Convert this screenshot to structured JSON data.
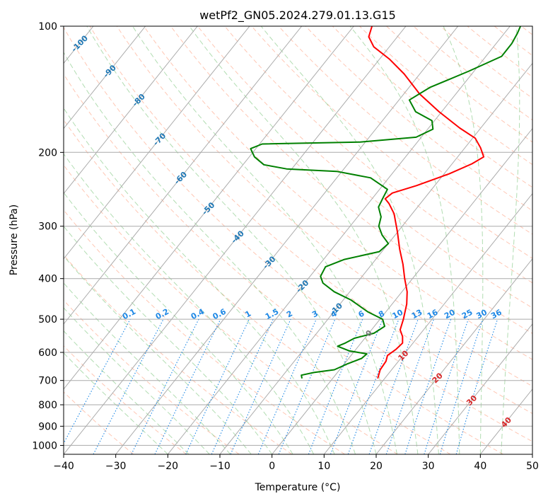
{
  "chart_data": {
    "type": "line",
    "subtype": "skew-t log-p diagram",
    "title": "wetPf2_GN05.2024.279.01.13.G15",
    "xlabel": "Temperature (°C)",
    "ylabel": "Pressure (hPa)",
    "xlim": [
      -40,
      50
    ],
    "ylim_hpa": [
      1050,
      100
    ],
    "y_scale": "log",
    "grid": true,
    "legend": "none",
    "x_ticks": [
      "−40",
      "−30",
      "−20",
      "−10",
      "0",
      "10",
      "20",
      "30",
      "40",
      "50"
    ],
    "y_ticks": [
      "100",
      "200",
      "300",
      "400",
      "500",
      "600",
      "700",
      "800",
      "900",
      "1000"
    ],
    "x_tick_values": [
      -40,
      -30,
      -20,
      -10,
      0,
      10,
      20,
      30,
      40,
      50
    ],
    "y_tick_values": [
      100,
      200,
      300,
      400,
      500,
      600,
      700,
      800,
      900,
      1000
    ],
    "isotherm_spacing_c": 10,
    "colors": {
      "temperature": "#ff0000",
      "dewpoint": "#008000",
      "isotherm": "#aaaaaa",
      "isobar": "#aaaaaa",
      "dry_adiabat": "#ff9977",
      "moist_adiabat": "#66bb66",
      "mixing_ratio": "#1e88e5",
      "freezing_level_curve": "#c8a878",
      "label_blue": "#1f77b4",
      "label_red": "#d62728",
      "label_gray": "#777777"
    },
    "series": [
      {
        "name": "temperature",
        "points": [
          {
            "p": 690,
            "t": 8.6
          },
          {
            "p": 660,
            "t": 7.8
          },
          {
            "p": 630,
            "t": 7.6
          },
          {
            "p": 610,
            "t": 7.0
          },
          {
            "p": 590,
            "t": 7.7
          },
          {
            "p": 570,
            "t": 8.0
          },
          {
            "p": 550,
            "t": 7.0
          },
          {
            "p": 530,
            "t": 5.5
          },
          {
            "p": 500,
            "t": 4.5
          },
          {
            "p": 460,
            "t": 2.8
          },
          {
            "p": 430,
            "t": 1.0
          },
          {
            "p": 400,
            "t": -1.5
          },
          {
            "p": 370,
            "t": -4.0
          },
          {
            "p": 340,
            "t": -7.0
          },
          {
            "p": 310,
            "t": -10.0
          },
          {
            "p": 280,
            "t": -13.5
          },
          {
            "p": 265,
            "t": -16.0
          },
          {
            "p": 258,
            "t": -17.5
          },
          {
            "p": 250,
            "t": -17.0
          },
          {
            "p": 240,
            "t": -13.5
          },
          {
            "p": 225,
            "t": -9.0
          },
          {
            "p": 213,
            "t": -6.2
          },
          {
            "p": 205,
            "t": -5.0
          },
          {
            "p": 195,
            "t": -7.0
          },
          {
            "p": 185,
            "t": -9.5
          },
          {
            "p": 175,
            "t": -14.0
          },
          {
            "p": 160,
            "t": -20.5
          },
          {
            "p": 145,
            "t": -27.0
          },
          {
            "p": 130,
            "t": -33.0
          },
          {
            "p": 120,
            "t": -38.0
          },
          {
            "p": 112,
            "t": -43.0
          },
          {
            "p": 106,
            "t": -45.5
          },
          {
            "p": 100,
            "t": -46.5
          }
        ]
      },
      {
        "name": "dewpoint",
        "points": [
          {
            "p": 690,
            "t": -6.0
          },
          {
            "p": 680,
            "t": -6.5
          },
          {
            "p": 670,
            "t": -4.5
          },
          {
            "p": 660,
            "t": -1.0
          },
          {
            "p": 640,
            "t": 0.5
          },
          {
            "p": 620,
            "t": 2.5
          },
          {
            "p": 605,
            "t": 2.8
          },
          {
            "p": 595,
            "t": -1.0
          },
          {
            "p": 580,
            "t": -4.0
          },
          {
            "p": 570,
            "t": -3.0
          },
          {
            "p": 555,
            "t": -2.0
          },
          {
            "p": 540,
            "t": 1.0
          },
          {
            "p": 520,
            "t": 2.0
          },
          {
            "p": 500,
            "t": 0.5
          },
          {
            "p": 480,
            "t": -3.5
          },
          {
            "p": 450,
            "t": -8.5
          },
          {
            "p": 430,
            "t": -13.0
          },
          {
            "p": 410,
            "t": -16.5
          },
          {
            "p": 395,
            "t": -18.0
          },
          {
            "p": 375,
            "t": -18.5
          },
          {
            "p": 360,
            "t": -16.0
          },
          {
            "p": 345,
            "t": -10.5
          },
          {
            "p": 330,
            "t": -10.0
          },
          {
            "p": 315,
            "t": -12.5
          },
          {
            "p": 300,
            "t": -14.5
          },
          {
            "p": 285,
            "t": -15.5
          },
          {
            "p": 270,
            "t": -17.5
          },
          {
            "p": 258,
            "t": -18.0
          },
          {
            "p": 245,
            "t": -18.5
          },
          {
            "p": 230,
            "t": -23.5
          },
          {
            "p": 222,
            "t": -31.0
          },
          {
            "p": 219,
            "t": -41.0
          },
          {
            "p": 214,
            "t": -46.0
          },
          {
            "p": 205,
            "t": -49.0
          },
          {
            "p": 196,
            "t": -51.0
          },
          {
            "p": 191,
            "t": -49.5
          },
          {
            "p": 189,
            "t": -31.0
          },
          {
            "p": 184,
            "t": -21.0
          },
          {
            "p": 176,
            "t": -19.0
          },
          {
            "p": 168,
            "t": -20.5
          },
          {
            "p": 160,
            "t": -25.0
          },
          {
            "p": 150,
            "t": -28.0
          },
          {
            "p": 140,
            "t": -26.0
          },
          {
            "p": 128,
            "t": -21.0
          },
          {
            "p": 118,
            "t": -17.0
          },
          {
            "p": 110,
            "t": -17.0
          },
          {
            "p": 104,
            "t": -17.5
          },
          {
            "p": 100,
            "t": -18.0
          }
        ]
      }
    ],
    "isotherm_labels": [
      {
        "text": "-100",
        "p": 110,
        "t": -100
      },
      {
        "text": "-90",
        "p": 128,
        "t": -90
      },
      {
        "text": "-80",
        "p": 150,
        "t": -80
      },
      {
        "text": "-70",
        "p": 186,
        "t": -70
      },
      {
        "text": "-60",
        "p": 230,
        "t": -60
      },
      {
        "text": "-50",
        "p": 272,
        "t": -50
      },
      {
        "text": "-40",
        "p": 318,
        "t": -40
      },
      {
        "text": "-30",
        "p": 366,
        "t": -30
      },
      {
        "text": "-20",
        "p": 417,
        "t": -20
      },
      {
        "text": "-10",
        "p": 473,
        "t": -10
      },
      {
        "text": "0",
        "p": 540,
        "t": 0
      },
      {
        "text": "10",
        "p": 610,
        "t": 10
      },
      {
        "text": "20",
        "p": 690,
        "t": 20
      },
      {
        "text": "30",
        "p": 780,
        "t": 30
      },
      {
        "text": "40",
        "p": 880,
        "t": 40
      }
    ],
    "mixing_ratio_lines_gkg": [
      "0.1",
      "0.2",
      "0.4",
      "0.6",
      "1",
      "1.5",
      "2",
      "3",
      "4",
      "6",
      "8",
      "10",
      "13",
      "16",
      "20",
      "25",
      "30",
      "36"
    ],
    "mixing_ratio_label_pressure": 500
  }
}
